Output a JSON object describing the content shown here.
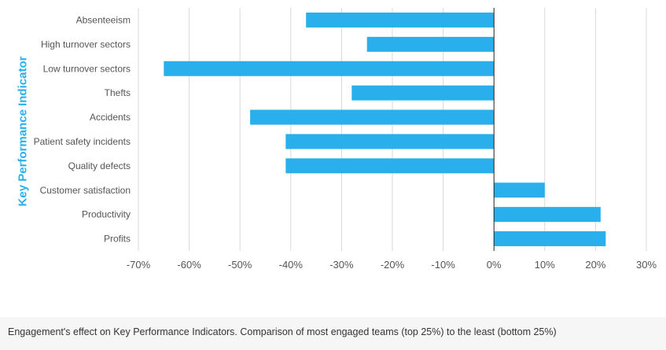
{
  "chart_data": {
    "type": "bar",
    "orientation": "horizontal",
    "categories": [
      "Absenteeism",
      "High turnover sectors",
      "Low turnover sectors",
      "Thefts",
      "Accidents",
      "Patient safety incidents",
      "Quality defects",
      "Customer satisfaction",
      "Productivity",
      "Profits"
    ],
    "values": [
      -37,
      -25,
      -65,
      -28,
      -48,
      -41,
      -41,
      10,
      21,
      22
    ],
    "ylabel": "Key Performance Indicator",
    "xlim": [
      -70,
      30
    ],
    "xticks": [
      -70,
      -60,
      -50,
      -40,
      -30,
      -20,
      -10,
      0,
      10,
      20,
      30
    ],
    "tick_format": "%",
    "grid": true,
    "bar_color": "#29b0ec"
  },
  "caption": "Engagement's effect on Key Performance Indicators. Comparison of most engaged teams (top 25%) to the least (bottom 25%)",
  "colors": {
    "bar": "#29b0ec",
    "axis_title": "#29b0ec",
    "grid": "#d9d9d9",
    "zero_line": "#222222",
    "label_text": "#555555",
    "caption_bg": "#f6f6f6"
  }
}
